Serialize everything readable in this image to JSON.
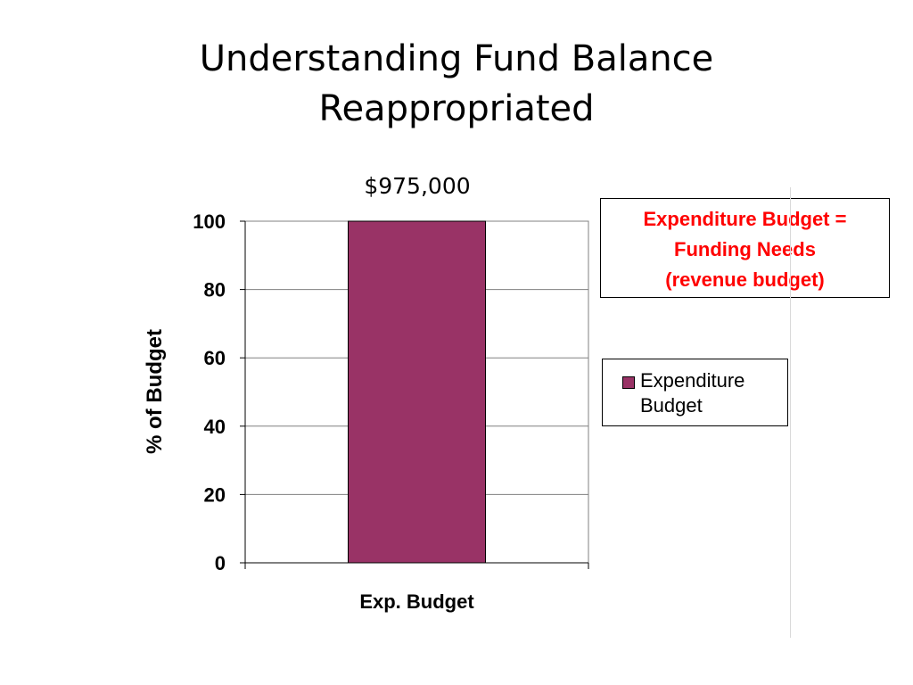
{
  "slide": {
    "title_line1": "Understanding Fund Balance",
    "title_line2": "Reappropriated",
    "bar_top_label": "$975,000"
  },
  "callout": {
    "line1": "Expenditure Budget =",
    "line2": "Funding Needs",
    "line3": "(revenue budget)",
    "color": "#ff0000"
  },
  "legend": {
    "entry_label": "Expenditure Budget"
  },
  "chart_data": {
    "type": "bar",
    "categories": [
      "Exp. Budget"
    ],
    "series": [
      {
        "name": "Expenditure Budget",
        "values": [
          100
        ],
        "color": "#993366"
      }
    ],
    "xlabel": "Exp. Budget",
    "ylabel": "% of Budget",
    "ylim": [
      0,
      100
    ],
    "yticks": [
      0,
      20,
      40,
      60,
      80,
      100
    ],
    "grid": true,
    "legend_position": "right"
  }
}
